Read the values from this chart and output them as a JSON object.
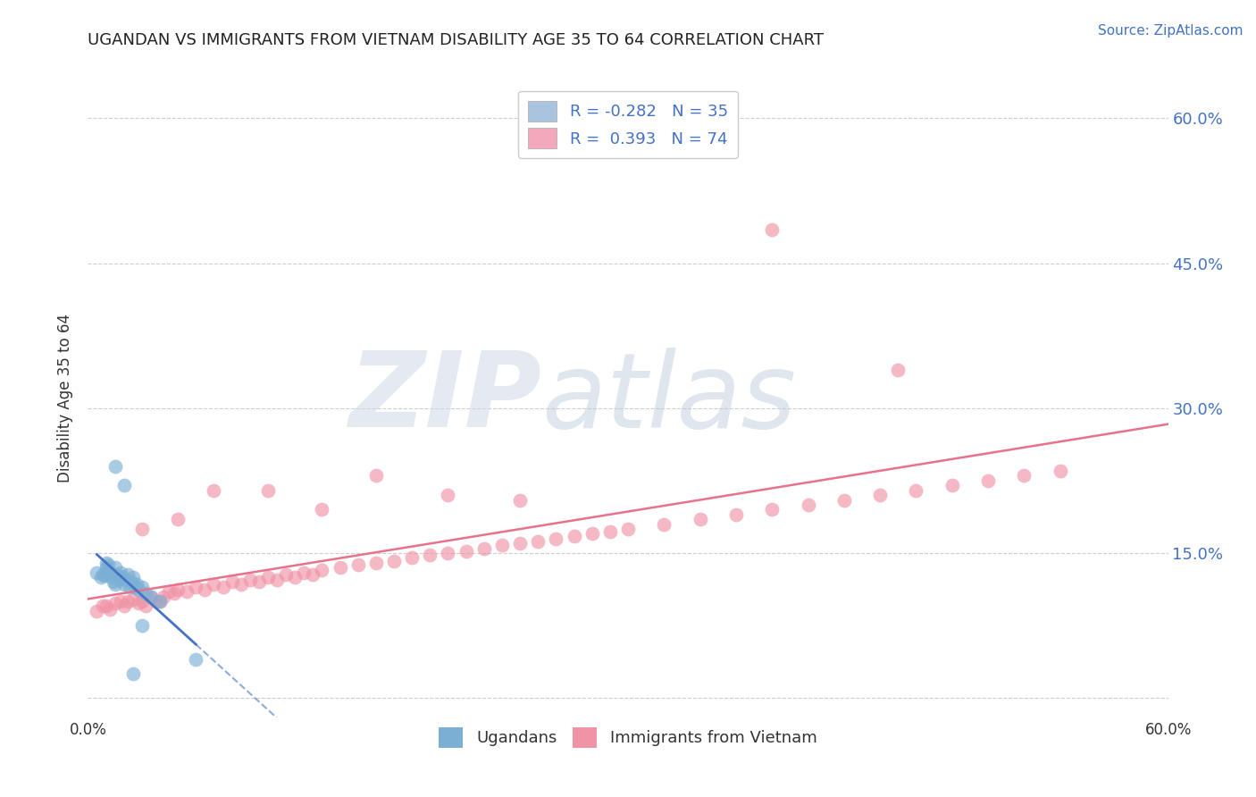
{
  "title": "UGANDAN VS IMMIGRANTS FROM VIETNAM DISABILITY AGE 35 TO 64 CORRELATION CHART",
  "source": "Source: ZipAtlas.com",
  "ylabel": "Disability Age 35 to 64",
  "right_yticks": [
    0.0,
    0.15,
    0.3,
    0.45,
    0.6
  ],
  "right_ytick_labels": [
    "",
    "15.0%",
    "30.0%",
    "45.0%",
    "60.0%"
  ],
  "xlim": [
    0.0,
    0.6
  ],
  "ylim": [
    -0.02,
    0.64
  ],
  "legend_entries": [
    {
      "label": "R = -0.282   N = 35",
      "color": "#aac4e0"
    },
    {
      "label": "R =  0.393   N = 74",
      "color": "#f4a8bc"
    }
  ],
  "ugandan_x": [
    0.005,
    0.007,
    0.008,
    0.009,
    0.01,
    0.01,
    0.01,
    0.011,
    0.012,
    0.013,
    0.014,
    0.015,
    0.015,
    0.016,
    0.017,
    0.018,
    0.019,
    0.02,
    0.021,
    0.022,
    0.023,
    0.024,
    0.025,
    0.026,
    0.027,
    0.028,
    0.03,
    0.032,
    0.035,
    0.04,
    0.015,
    0.02,
    0.06,
    0.03,
    0.025
  ],
  "ugandan_y": [
    0.13,
    0.125,
    0.128,
    0.127,
    0.135,
    0.14,
    0.132,
    0.138,
    0.13,
    0.125,
    0.12,
    0.118,
    0.135,
    0.128,
    0.122,
    0.13,
    0.125,
    0.118,
    0.122,
    0.128,
    0.115,
    0.12,
    0.125,
    0.115,
    0.118,
    0.112,
    0.115,
    0.108,
    0.105,
    0.1,
    0.24,
    0.22,
    0.04,
    0.075,
    0.025
  ],
  "vietnam_x": [
    0.005,
    0.008,
    0.01,
    0.012,
    0.015,
    0.018,
    0.02,
    0.022,
    0.025,
    0.028,
    0.03,
    0.032,
    0.035,
    0.038,
    0.04,
    0.042,
    0.045,
    0.048,
    0.05,
    0.055,
    0.06,
    0.065,
    0.07,
    0.075,
    0.08,
    0.085,
    0.09,
    0.095,
    0.1,
    0.105,
    0.11,
    0.115,
    0.12,
    0.125,
    0.13,
    0.14,
    0.15,
    0.16,
    0.17,
    0.18,
    0.19,
    0.2,
    0.21,
    0.22,
    0.23,
    0.24,
    0.25,
    0.26,
    0.27,
    0.28,
    0.29,
    0.3,
    0.32,
    0.34,
    0.36,
    0.38,
    0.4,
    0.42,
    0.44,
    0.46,
    0.48,
    0.5,
    0.52,
    0.54,
    0.03,
    0.05,
    0.07,
    0.1,
    0.13,
    0.16,
    0.2,
    0.24,
    0.38,
    0.45
  ],
  "vietnam_y": [
    0.09,
    0.095,
    0.095,
    0.092,
    0.098,
    0.1,
    0.095,
    0.1,
    0.102,
    0.098,
    0.1,
    0.095,
    0.105,
    0.1,
    0.1,
    0.105,
    0.11,
    0.108,
    0.112,
    0.11,
    0.115,
    0.112,
    0.118,
    0.115,
    0.12,
    0.118,
    0.122,
    0.12,
    0.125,
    0.122,
    0.128,
    0.125,
    0.13,
    0.128,
    0.132,
    0.135,
    0.138,
    0.14,
    0.142,
    0.145,
    0.148,
    0.15,
    0.152,
    0.155,
    0.158,
    0.16,
    0.162,
    0.165,
    0.168,
    0.17,
    0.172,
    0.175,
    0.18,
    0.185,
    0.19,
    0.195,
    0.2,
    0.205,
    0.21,
    0.215,
    0.22,
    0.225,
    0.23,
    0.235,
    0.175,
    0.185,
    0.215,
    0.215,
    0.195,
    0.23,
    0.21,
    0.205,
    0.485,
    0.34
  ],
  "ugandan_color": "#7bafd4",
  "vietnam_color": "#f093a7",
  "trend_blue_color": "#4472c4",
  "trend_pink_color": "#e8728a",
  "background_color": "#ffffff",
  "grid_color": "#c8c8c8",
  "watermark_zip_color": "#d0d8e8",
  "watermark_atlas_color": "#b8c8d8"
}
